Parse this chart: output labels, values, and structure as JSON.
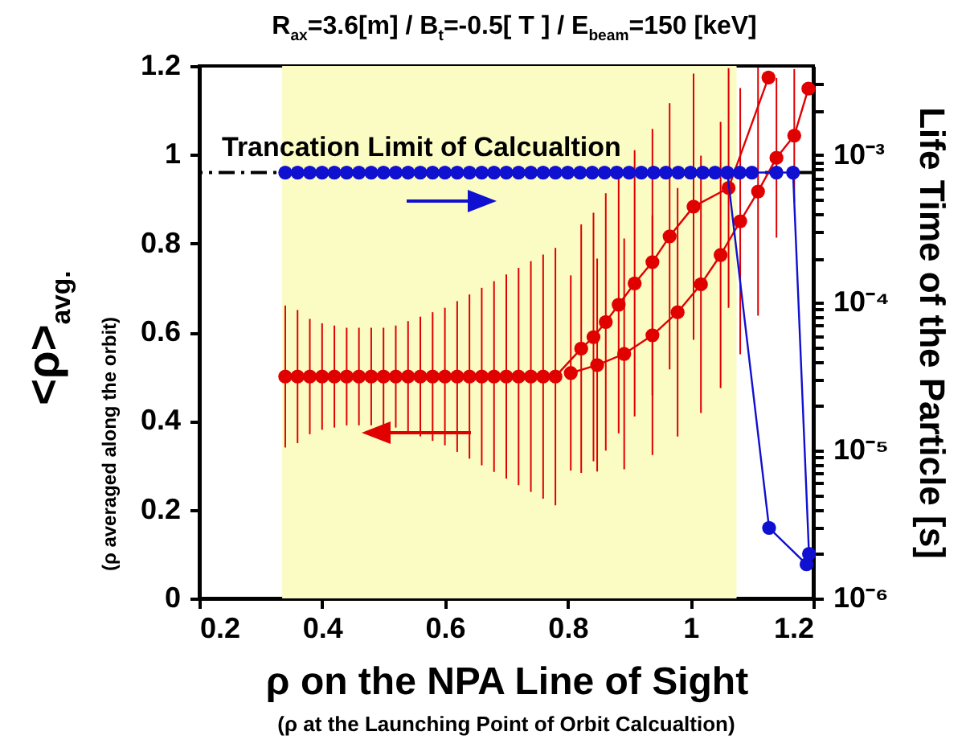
{
  "chart_data": {
    "type": "line",
    "title": "R$_{ax}$=3.6[m] / B$_{t}$=-0.5[ T ] / E$_{beam}$=150 [keV]",
    "xlabel": "ρ on the NPA Line of Sight",
    "ylabel": "<ρ>$_{avg.}$",
    "y2label": "Life Time of the Particle [s]",
    "annotations": [
      "(ρ averaged along the orbit)",
      "(ρ at the Launching Point of Orbit Calcualtion)"
    ],
    "xlim": [
      0.2,
      1.2
    ],
    "xticks": [
      0.2,
      0.4,
      0.6,
      0.8,
      1,
      1.2
    ],
    "ylim": [
      0,
      1.2
    ],
    "yticks": [
      0,
      0.2,
      0.4,
      0.6,
      0.8,
      1,
      1.2
    ],
    "y2lim": [
      1e-06,
      0.004
    ],
    "y2ticks": [
      {
        "value": 1e-06,
        "label": "10⁻⁶"
      },
      {
        "value": 2e-06,
        "label": null
      },
      {
        "value": 3e-06,
        "label": null
      },
      {
        "value": 4e-06,
        "label": null
      },
      {
        "value": 5e-06,
        "label": null
      },
      {
        "value": 6e-06,
        "label": null
      },
      {
        "value": 7e-06,
        "label": null
      },
      {
        "value": 8e-06,
        "label": null
      },
      {
        "value": 9e-06,
        "label": null
      },
      {
        "value": 1e-05,
        "label": "10⁻⁵"
      },
      {
        "value": 2e-05,
        "label": null
      },
      {
        "value": 3e-05,
        "label": null
      },
      {
        "value": 4e-05,
        "label": null
      },
      {
        "value": 5e-05,
        "label": null
      },
      {
        "value": 6e-05,
        "label": null
      },
      {
        "value": 7e-05,
        "label": null
      },
      {
        "value": 8e-05,
        "label": null
      },
      {
        "value": 9e-05,
        "label": null
      },
      {
        "value": 0.0001,
        "label": "10⁻⁴"
      },
      {
        "value": 0.0002,
        "label": null
      },
      {
        "value": 0.0003,
        "label": null
      },
      {
        "value": 0.0004,
        "label": null
      },
      {
        "value": 0.0005,
        "label": null
      },
      {
        "value": 0.0006,
        "label": null
      },
      {
        "value": 0.0007,
        "label": null
      },
      {
        "value": 0.0008,
        "label": null
      },
      {
        "value": 0.0009,
        "label": null
      },
      {
        "value": 0.001,
        "label": "10⁻³"
      },
      {
        "value": 0.002,
        "label": null
      },
      {
        "value": 0.003,
        "label": null
      }
    ],
    "log": "y2",
    "marker": "circle",
    "series": [
      {
        "color": "#e00000",
        "x": [
          0.34,
          0.36,
          0.38,
          0.4,
          0.42,
          0.44,
          0.46,
          0.48,
          0.5,
          0.52,
          0.54,
          0.56,
          0.58,
          0.6,
          0.62,
          0.64,
          0.66,
          0.68,
          0.7,
          0.72,
          0.74,
          0.76,
          0.78,
          0.822,
          0.842,
          0.862,
          0.883,
          0.909,
          0.938,
          0.966,
          1.005,
          1.062,
          1.127
        ],
        "values": [
          0.5,
          0.5,
          0.5,
          0.5,
          0.5,
          0.5,
          0.5,
          0.5,
          0.5,
          0.5,
          0.5,
          0.5,
          0.5,
          0.5,
          0.5,
          0.5,
          0.5,
          0.5,
          0.5,
          0.5,
          0.5,
          0.5,
          0.5,
          0.563,
          0.589,
          0.623,
          0.662,
          0.71,
          0.758,
          0.816,
          0.883,
          0.925,
          1.174
        ],
        "errors": [
          0.16,
          0.15,
          0.13,
          0.12,
          0.115,
          0.11,
          0.11,
          0.11,
          0.11,
          0.115,
          0.125,
          0.135,
          0.145,
          0.155,
          0.17,
          0.185,
          0.2,
          0.215,
          0.23,
          0.245,
          0.26,
          0.275,
          0.29,
          0.28,
          0.28,
          0.29,
          0.29,
          0.3,
          0.3,
          0.3,
          0.3,
          0.27,
          null
        ]
      },
      {
        "color": "#e00000",
        "x": [
          0.805,
          0.848,
          0.892,
          0.938,
          0.979,
          1.017,
          1.049,
          1.081,
          1.11,
          1.14,
          1.169,
          1.192
        ],
        "values": [
          0.508,
          0.526,
          0.551,
          0.593,
          0.645,
          0.708,
          0.774,
          0.85,
          0.917,
          0.993,
          1.043,
          1.149
        ],
        "errors": [
          0.22,
          0.24,
          0.26,
          0.27,
          0.28,
          0.29,
          0.3,
          0.3,
          0.28,
          0.18,
          0.15,
          null
        ]
      },
      {
        "color": "#1010d0",
        "axis": "y2",
        "x": [
          0.34,
          0.36,
          0.38,
          0.4,
          0.42,
          0.44,
          0.46,
          0.48,
          0.5,
          0.52,
          0.54,
          0.56,
          0.58,
          0.6,
          0.62,
          0.64,
          0.66,
          0.68,
          0.7,
          0.72,
          0.74,
          0.76,
          0.78,
          0.8,
          0.82,
          0.84,
          0.86,
          0.88,
          0.9,
          0.92,
          0.94,
          0.96,
          0.98,
          1,
          1.02,
          1.04,
          1.06,
          1.128,
          1.189
        ],
        "values": [
          0.00076,
          0.00076,
          0.00076,
          0.00076,
          0.00076,
          0.00076,
          0.00076,
          0.00076,
          0.00076,
          0.00076,
          0.00076,
          0.00076,
          0.00076,
          0.00076,
          0.00076,
          0.00076,
          0.00076,
          0.00076,
          0.00076,
          0.00076,
          0.00076,
          0.00076,
          0.00076,
          0.00076,
          0.00076,
          0.00076,
          0.00076,
          0.00076,
          0.00076,
          0.00076,
          0.00076,
          0.00076,
          0.00076,
          0.00076,
          0.00076,
          0.00076,
          0.00076,
          3e-06,
          1.7e-06
        ]
      },
      {
        "color": "#1010d0",
        "axis": "y2",
        "x": [
          1.08,
          1.1,
          1.14,
          1.167,
          1.193
        ],
        "values": [
          0.00076,
          0.00076,
          0.00076,
          0.00076,
          2e-06
        ]
      }
    ],
    "ref_lines": [
      {
        "axis": "y",
        "value": 0.96,
        "label": "Trancation Limit of Calcualtion",
        "color": "#000000",
        "line_style": "dashed"
      }
    ],
    "bands": [
      {
        "axis": "x",
        "from": 0.335,
        "to": 1.075,
        "color": "#fbfbc4"
      }
    ]
  }
}
